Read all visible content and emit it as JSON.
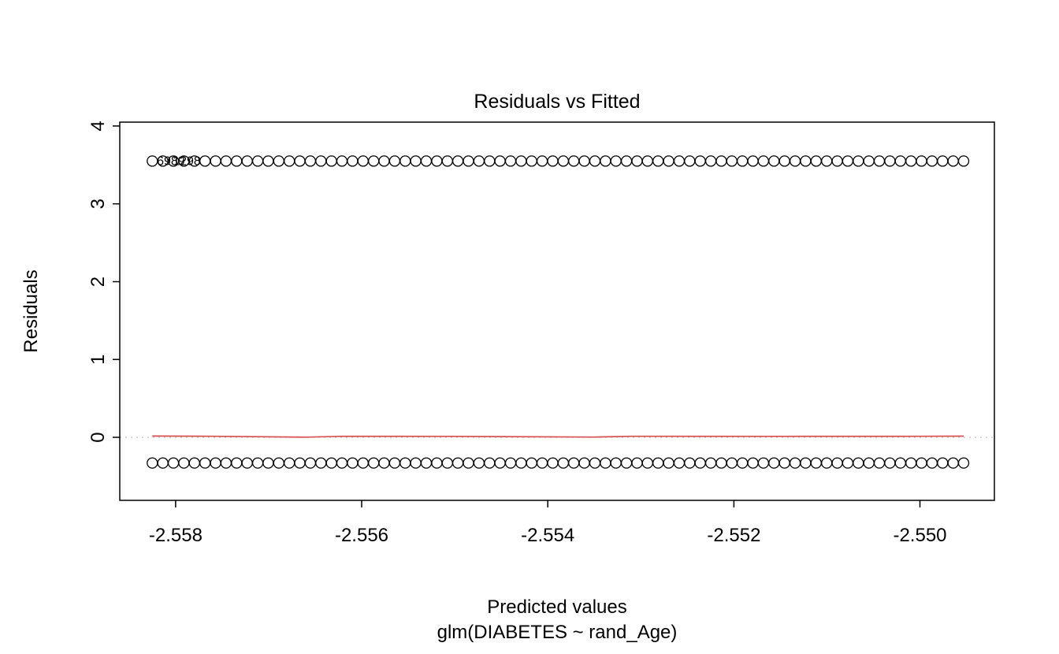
{
  "chart_data": {
    "type": "scatter",
    "title": "Residuals vs Fitted",
    "xlabel": "Predicted values",
    "model_caption": "glm(DIABETES ~ rand_Age)",
    "ylabel": "Residuals",
    "xlim": [
      -2.5586,
      -2.5492
    ],
    "ylim": [
      -0.81,
      4.05
    ],
    "x_ticks": [
      -2.558,
      -2.556,
      -2.554,
      -2.552,
      -2.55
    ],
    "x_tick_labels": [
      "-2.558",
      "-2.556",
      "-2.554",
      "-2.552",
      "-2.550"
    ],
    "y_ticks": [
      0,
      1,
      2,
      3,
      4
    ],
    "y_tick_labels": [
      "0",
      "1",
      "2",
      "3",
      "4"
    ],
    "grid": false,
    "point_color": "#000000",
    "background": "#ffffff",
    "bands": [
      {
        "name": "positive-residual-band",
        "y": 3.55,
        "x_start": -2.55825,
        "x_end": -2.54953,
        "n_points": 78
      },
      {
        "name": "negative-residual-band",
        "y": -0.33,
        "x_start": -2.55825,
        "x_end": -2.54953,
        "n_points": 78
      }
    ],
    "smoother": {
      "color": "#d94f4f",
      "x": [
        -2.55825,
        -2.5576,
        -2.5566,
        -2.5562,
        -2.555,
        -2.5535,
        -2.5531,
        -2.5515,
        -2.55,
        -2.54953
      ],
      "y": [
        0.016,
        0.013,
        0.002,
        0.013,
        0.012,
        0.003,
        0.013,
        0.012,
        0.013,
        0.015
      ]
    },
    "reference_line": {
      "y": 0,
      "color": "#bebebe",
      "style": "dotted"
    },
    "point_labels": [
      {
        "text": "6989",
        "x": -2.55805,
        "y": 3.56
      },
      {
        "text": "1298",
        "x": -2.55788,
        "y": 3.56
      }
    ]
  }
}
